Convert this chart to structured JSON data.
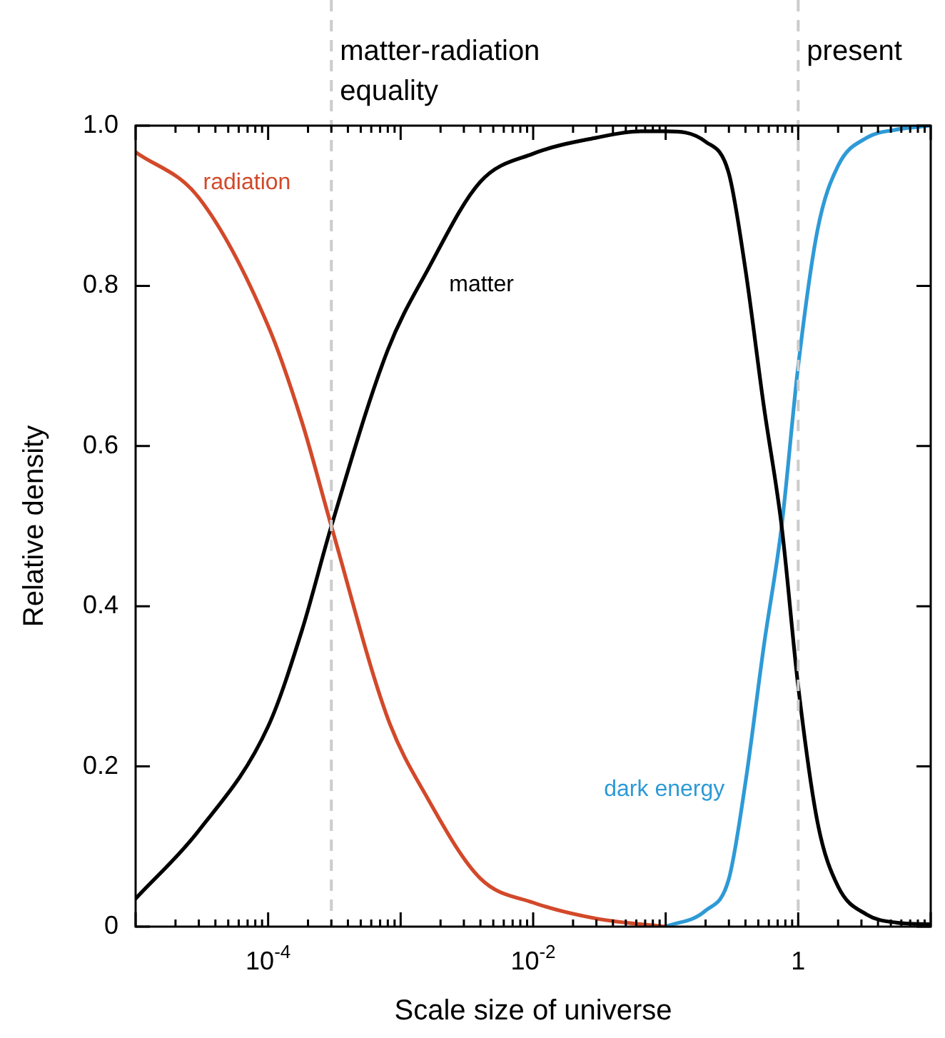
{
  "chart_data": {
    "type": "line",
    "xlabel": "Scale size of universe",
    "ylabel": "Relative density",
    "log": "x",
    "marker": "none",
    "line_style": "solid",
    "x": [
      1e-05,
      3e-05,
      0.0001,
      0.00018,
      0.0003,
      0.0008,
      0.0016,
      0.004,
      0.01,
      0.03,
      0.065,
      0.1,
      0.2,
      0.3,
      0.4,
      0.55,
      0.75,
      1,
      1.4,
      2,
      3.3,
      5.5,
      10
    ],
    "series": [
      {
        "name": "radiation",
        "color": "#d2492a",
        "values": [
          0.967,
          0.91,
          0.75,
          0.63,
          0.5,
          0.26,
          0.16,
          0.06,
          0.03,
          0.01,
          0.003,
          0,
          null,
          null,
          null,
          null,
          null,
          null,
          null,
          null,
          null,
          null,
          null
        ]
      },
      {
        "name": "matter",
        "color": "#000000",
        "values": [
          0.035,
          0.12,
          0.25,
          0.37,
          0.5,
          0.72,
          0.82,
          0.93,
          0.965,
          0.985,
          0.993,
          0.993,
          0.98,
          0.94,
          0.82,
          0.65,
          0.5,
          0.3,
          0.13,
          0.05,
          0.015,
          0.005,
          0.003
        ]
      },
      {
        "name": "dark energy",
        "color": "#2e9ad6",
        "values": [
          null,
          null,
          null,
          null,
          null,
          null,
          null,
          null,
          null,
          null,
          null,
          0,
          0.02,
          0.06,
          0.18,
          0.35,
          0.5,
          0.7,
          0.87,
          0.95,
          0.985,
          0.995,
          1
        ]
      }
    ],
    "xlim": [
      1e-05,
      10
    ],
    "xticks": [
      {
        "value": 1e-05,
        "label": null
      },
      {
        "value": 0.0001,
        "label": "10$^{-4}$"
      },
      {
        "value": 0.001,
        "label": null
      },
      {
        "value": 0.01,
        "label": "10$^{-2}$"
      },
      {
        "value": 0.1,
        "label": null
      },
      1,
      {
        "value": 10,
        "label": null
      }
    ],
    "ylim": [
      0,
      1
    ],
    "yticks": [
      0,
      0.2,
      0.4,
      0.6,
      0.8,
      {
        "value": 1,
        "label": "1.0"
      }
    ],
    "ref_lines": [
      {
        "axis": "x",
        "value": 0.0003,
        "label": "matter-radiation equality",
        "color": "#cccccc",
        "line_style": "dashed"
      },
      {
        "axis": "x",
        "value": 1,
        "label": "present",
        "color": "#cccccc",
        "line_style": "dashed"
      }
    ]
  }
}
